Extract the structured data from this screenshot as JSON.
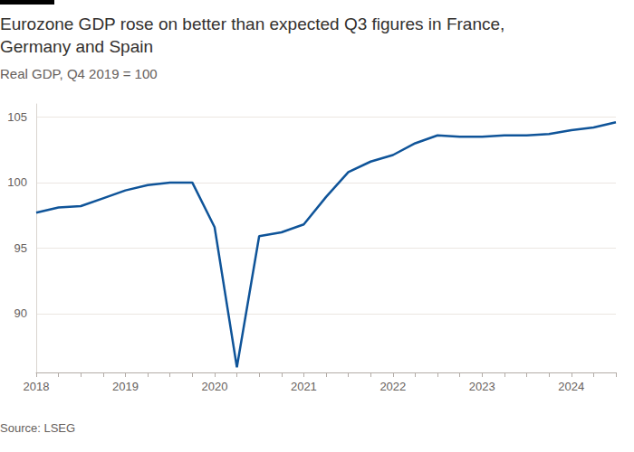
{
  "chart_data": {
    "type": "line",
    "title": "Eurozone GDP rose on better than expected Q3 figures in France, Germany and Spain",
    "subtitle": "Real GDP, Q4 2019 = 100",
    "source": "Source: LSEG",
    "categories": [
      "2018",
      null,
      null,
      null,
      "2019",
      null,
      null,
      null,
      "2020",
      null,
      null,
      null,
      "2021",
      null,
      null,
      null,
      "2022",
      null,
      null,
      null,
      "2023",
      null,
      null,
      null,
      "2024",
      null,
      null
    ],
    "values": [
      97.7,
      98.1,
      98.2,
      98.8,
      99.4,
      99.8,
      100.0,
      100.0,
      96.6,
      85.9,
      95.9,
      96.2,
      96.8,
      98.9,
      100.8,
      101.6,
      102.1,
      103.0,
      103.6,
      103.5,
      103.5,
      103.6,
      103.6,
      103.7,
      104.0,
      104.2,
      104.6
    ],
    "color": "#0f5499",
    "ylim": [
      85.5,
      106
    ],
    "yticks": [
      90,
      95,
      100,
      105
    ],
    "grid": true,
    "marker": "none"
  }
}
